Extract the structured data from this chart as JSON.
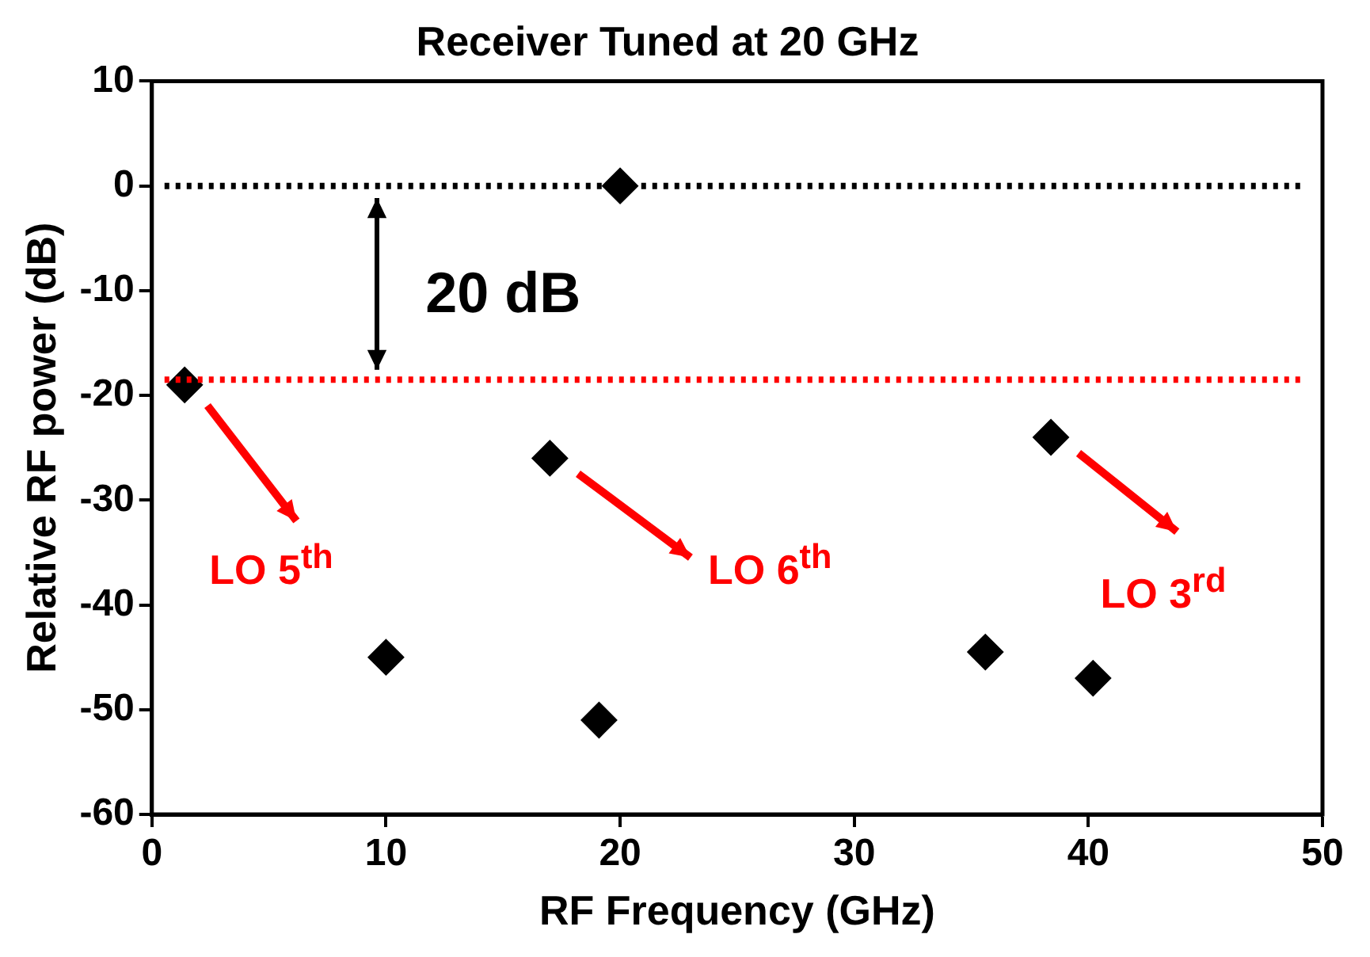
{
  "chart_data": {
    "type": "scatter",
    "title": "Receiver Tuned at 20 GHz",
    "xlabel": "RF Frequency (GHz)",
    "ylabel": "Relative RF power (dB)",
    "x": [
      1.4,
      10,
      17,
      19.1,
      20,
      35.6,
      38.4,
      40.2
    ],
    "series": [
      {
        "color": "#000000",
        "values": [
          -19,
          -45,
          -26,
          -51,
          0,
          -44.5,
          -24,
          -47
        ]
      }
    ],
    "marker": "diamond",
    "grid": false,
    "legend": false,
    "xlim": [
      0,
      50
    ],
    "xticks": [
      0,
      10,
      20,
      30,
      40,
      50
    ],
    "ylim": [
      -60,
      10
    ],
    "yticks": [
      -60,
      -50,
      -40,
      -30,
      -20,
      -10,
      0,
      10
    ],
    "ref_lines": [
      {
        "axis": "y",
        "value": 0,
        "color": "#000000",
        "line_style": "dotted"
      },
      {
        "axis": "y",
        "value": -18.5,
        "color": "#ff0000",
        "line_style": "dotted"
      }
    ],
    "annotations": [
      "20 dB",
      "LO 5$^{th}$",
      "LO 6$^{th}$",
      "LO 3$^{rd}$"
    ]
  }
}
